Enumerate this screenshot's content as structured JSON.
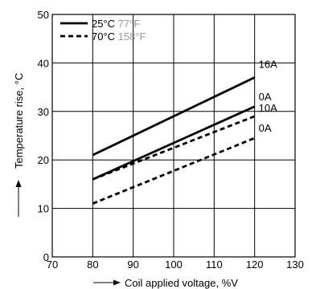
{
  "chart_data": {
    "type": "line",
    "xlabel": "Coil applied voltage, %V",
    "ylabel": "Temperature rise, °C",
    "xlim": [
      70,
      130
    ],
    "ylim": [
      0,
      50
    ],
    "xticks": [
      70,
      80,
      90,
      100,
      110,
      120,
      130
    ],
    "yticks": [
      0,
      10,
      20,
      30,
      40,
      50
    ],
    "grid": true,
    "legend_position": "top-left",
    "legend": [
      {
        "label_c": "25°C",
        "label_f": "77°F",
        "style": "solid"
      },
      {
        "label_c": "70°C",
        "label_f": "158°F",
        "style": "dashed"
      }
    ],
    "series": [
      {
        "name": "16A",
        "group": "25°C",
        "style": "solid",
        "x": [
          80,
          120
        ],
        "y": [
          21,
          37
        ]
      },
      {
        "name": "0A",
        "group": "25°C",
        "style": "solid",
        "x": [
          80,
          120
        ],
        "y": [
          16,
          31
        ]
      },
      {
        "name": "10A",
        "group": "70°C",
        "style": "dashed",
        "x": [
          80,
          120
        ],
        "y": [
          16,
          29
        ]
      },
      {
        "name": "0A",
        "group": "70°C",
        "style": "dashed",
        "x": [
          80,
          120
        ],
        "y": [
          11,
          24.5
        ]
      }
    ],
    "colors": {
      "line": "#000000",
      "grid": "#000000",
      "fahrenheit_text": "#9a9a9a"
    }
  }
}
